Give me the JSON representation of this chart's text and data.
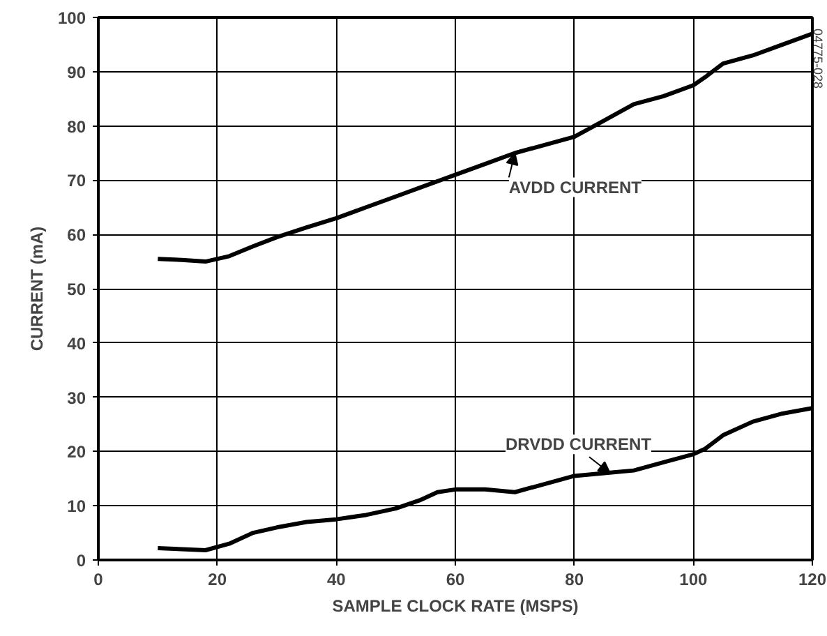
{
  "chart_data": {
    "type": "line",
    "xlabel": "SAMPLE CLOCK RATE (MSPS)",
    "ylabel": "CURRENT (mA)",
    "xlim": [
      0,
      120
    ],
    "ylim": [
      0,
      100
    ],
    "xticks": [
      0,
      20,
      40,
      60,
      80,
      100,
      120
    ],
    "yticks": [
      0,
      10,
      20,
      30,
      40,
      50,
      60,
      70,
      80,
      90,
      100
    ],
    "grid": true,
    "marker": "none",
    "line_style": "solid",
    "series": [
      {
        "color": "#000000",
        "x": [
          10,
          14,
          18,
          22,
          26,
          30,
          35,
          40,
          45,
          50,
          55,
          60,
          65,
          70,
          75,
          80,
          85,
          90,
          95,
          100,
          102,
          105,
          110,
          115,
          120
        ],
        "values": [
          55.5,
          55.3,
          55,
          56,
          57.8,
          59.5,
          61.3,
          63,
          65,
          67,
          69,
          71,
          73,
          75,
          76.5,
          78,
          81,
          84,
          85.5,
          87.5,
          89,
          91.5,
          93,
          95,
          97
        ]
      },
      {
        "color": "#000000",
        "x": [
          10,
          14,
          18,
          22,
          26,
          30,
          35,
          40,
          45,
          50,
          54,
          57,
          60,
          65,
          70,
          75,
          80,
          85,
          90,
          95,
          100,
          102,
          105,
          110,
          115,
          120
        ],
        "values": [
          2.2,
          2,
          1.8,
          3,
          5,
          6,
          7,
          7.5,
          8.3,
          9.5,
          11,
          12.5,
          13,
          13,
          12.5,
          14,
          15.5,
          16,
          16.5,
          18,
          19.5,
          20.5,
          23,
          25.5,
          27,
          28
        ]
      }
    ],
    "annotations": [
      {
        "text": "AVDD CURRENT",
        "x": 70,
        "y": 75
      },
      {
        "text": "DRVDD CURRENT",
        "x": 86,
        "y": 16
      },
      "04775-028"
    ]
  }
}
